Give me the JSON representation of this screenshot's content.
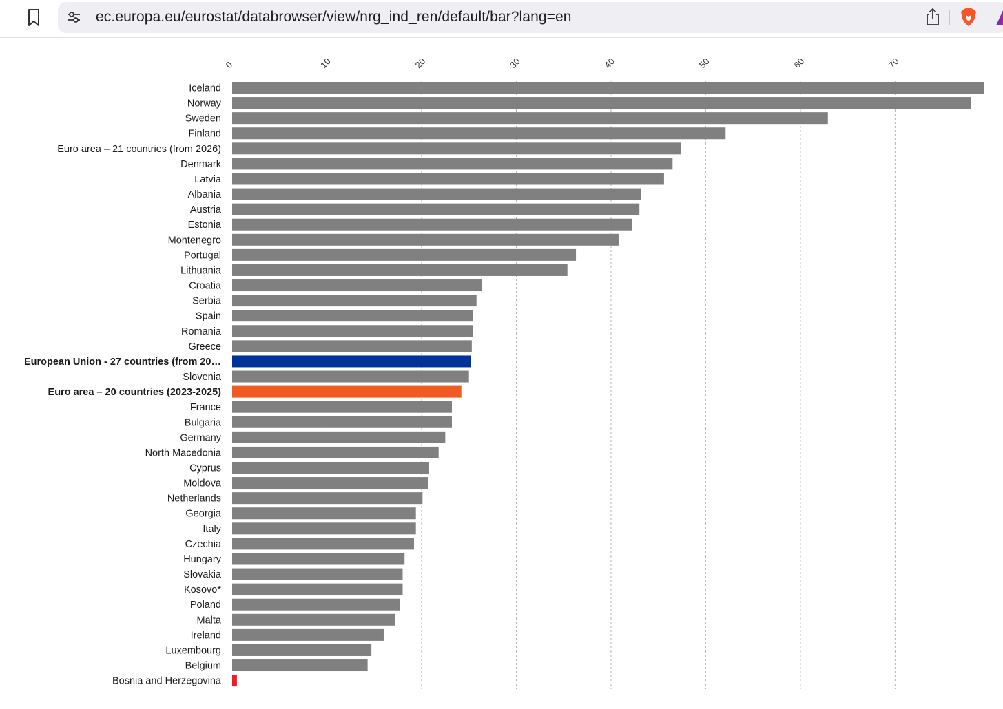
{
  "browser": {
    "url": "ec.europa.eu/eurostat/databrowser/view/nrg_ind_ren/default/bar?lang=en",
    "icons": {
      "bookmark": "bookmark-icon",
      "site_settings": "tune-icon",
      "share": "share-icon",
      "brave": "brave-lion-icon",
      "extension": "triangle-icon"
    }
  },
  "colors": {
    "default_bar": "#808080",
    "eu27_bar": "#003399",
    "euro20_bar": "#f15a22",
    "bosnia_bar": "#ee1c25",
    "grid": "#b5b5b5"
  },
  "chart_data": {
    "type": "bar",
    "orientation": "horizontal",
    "xlim": [
      0,
      79.5
    ],
    "x_ticks": [
      "0",
      "10",
      "20",
      "30",
      "40",
      "50",
      "60",
      "70"
    ],
    "grid": true,
    "categories": [
      "Iceland",
      "Norway",
      "Sweden",
      "Finland",
      "Euro area – 21 countries (from 2026)",
      "Denmark",
      "Latvia",
      "Albania",
      "Austria",
      "Estonia",
      "Montenegro",
      "Portugal",
      "Lithuania",
      "Croatia",
      "Serbia",
      "Spain",
      "Romania",
      "Greece",
      "European Union - 27 countries (from 20…",
      "Slovenia",
      "Euro area – 20 countries (2023-2025)",
      "France",
      "Bulgaria",
      "Germany",
      "North Macedonia",
      "Cyprus",
      "Moldova",
      "Netherlands",
      "Georgia",
      "Italy",
      "Czechia",
      "Hungary",
      "Slovakia",
      "Kosovo*",
      "Poland",
      "Malta",
      "Ireland",
      "Luxembourg",
      "Belgium",
      "Bosnia and Herzegovina"
    ],
    "values": [
      79.4,
      78.0,
      62.9,
      52.1,
      47.4,
      46.5,
      45.6,
      43.2,
      43.0,
      42.2,
      40.8,
      36.3,
      35.4,
      26.4,
      25.8,
      25.4,
      25.4,
      25.3,
      25.2,
      25.0,
      24.2,
      23.2,
      23.2,
      22.5,
      21.8,
      20.8,
      20.7,
      20.1,
      19.4,
      19.4,
      19.2,
      18.2,
      18.0,
      18.0,
      17.7,
      17.2,
      16.0,
      14.7,
      14.3,
      0.5
    ],
    "highlight": {
      "European Union - 27 countries (from 20…": "eu27",
      "Euro area – 20 countries (2023-2025)": "euro20",
      "Bosnia and Herzegovina": "bosnia"
    },
    "bold_labels": [
      "European Union - 27 countries (from 20…",
      "Euro area – 20 countries (2023-2025)"
    ]
  }
}
